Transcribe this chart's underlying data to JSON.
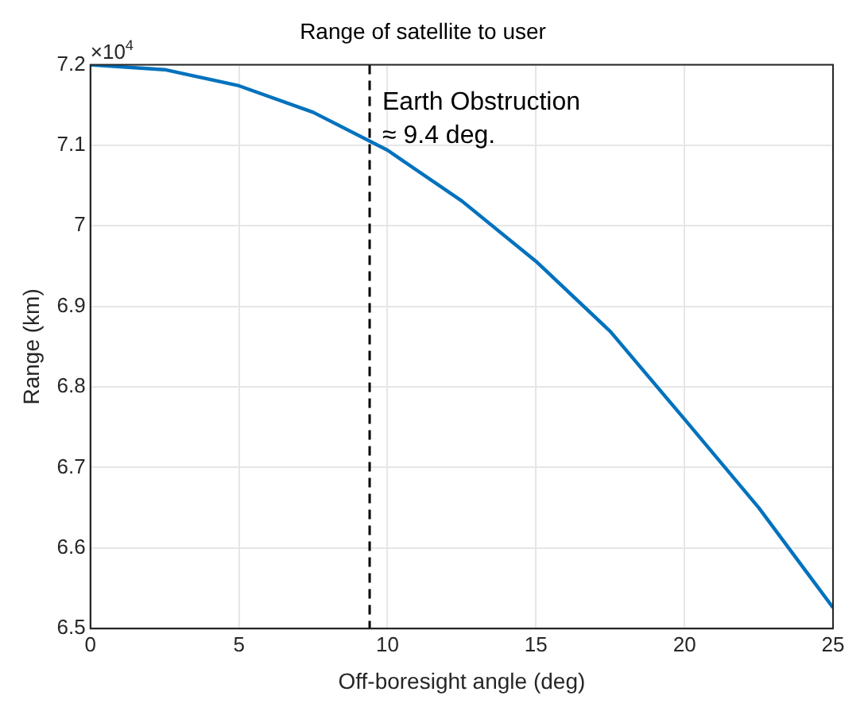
{
  "chart_data": {
    "type": "line",
    "title": "Range of satellite to user",
    "xlabel": "Off-boresight angle (deg)",
    "ylabel": "Range (km)",
    "x": [
      0,
      2.5,
      5,
      7.5,
      10,
      12.5,
      15,
      17.5,
      20,
      22.5,
      25
    ],
    "series": [
      {
        "color": "#0072bd",
        "values": [
          7.2,
          7.194,
          7.174,
          7.141,
          7.094,
          7.031,
          6.956,
          6.869,
          6.76,
          6.65,
          6.526
        ]
      }
    ],
    "xlim": [
      0,
      25
    ],
    "xticks": [
      0,
      5,
      10,
      15,
      20,
      25
    ],
    "ylim": [
      6.5,
      7.2
    ],
    "yticks": [
      6.5,
      6.6,
      6.7,
      6.8,
      6.9,
      7,
      7.1,
      7.2
    ],
    "ref_lines": [
      {
        "axis": "x",
        "value": 9.4,
        "label": "Earth Obstruction\n≈ 9.4 deg.",
        "color": "#000000",
        "line_style": "dashed"
      }
    ],
    "annotations": [
      "×10$^{4}$"
    ],
    "grid": true,
    "legend": false,
    "marker": "none",
    "line_style": "solid"
  }
}
